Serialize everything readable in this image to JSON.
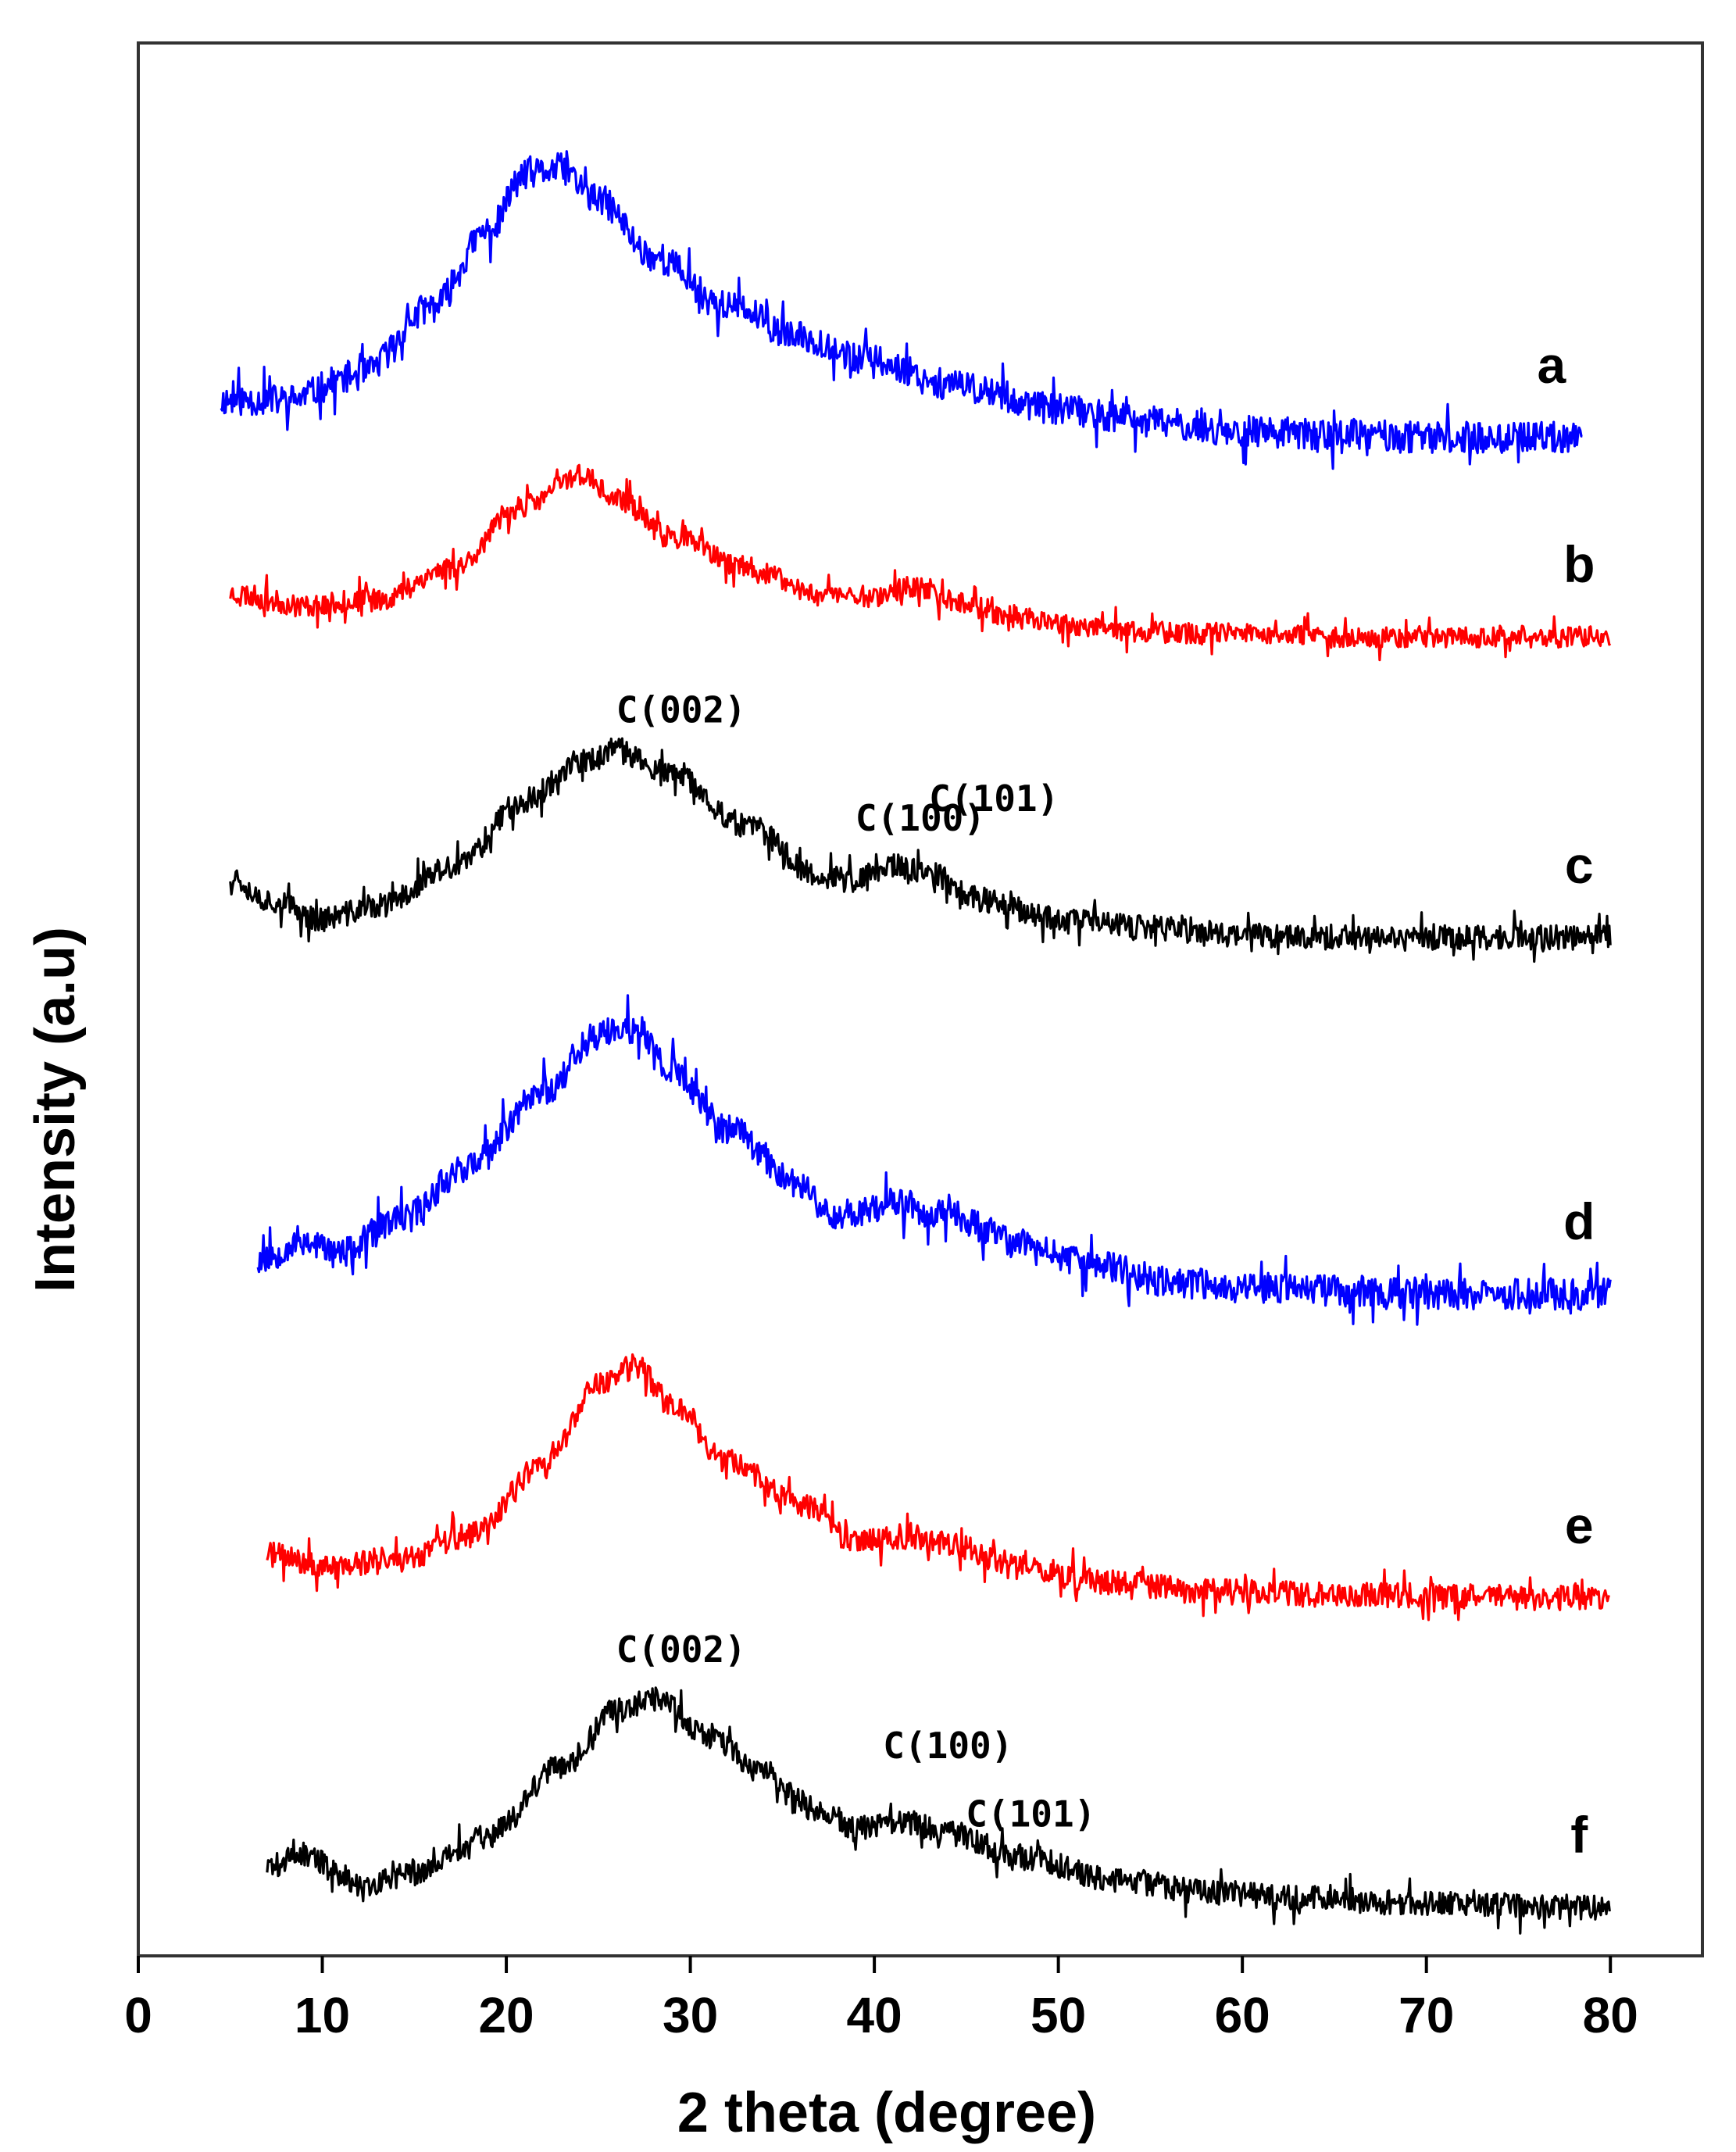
{
  "chart_data": {
    "type": "line",
    "xlabel": "2 theta (degree)",
    "ylabel": "Intensity (a.u)",
    "xlim": [
      0,
      85
    ],
    "xticks": [
      0,
      10,
      20,
      30,
      40,
      50,
      60,
      70,
      80
    ],
    "xtick_labels": [
      "0",
      "10",
      "20",
      "30",
      "40",
      "50",
      "60",
      "70",
      "80"
    ],
    "grid": false,
    "series": [
      {
        "name": "a",
        "label": "a",
        "color": "#0000ff",
        "x_start": 4.5,
        "x_end": 78.5,
        "noise": 0.05,
        "seed": 11,
        "points": [
          [
            4.5,
            0.12
          ],
          [
            8,
            0.12
          ],
          [
            12,
            0.2
          ],
          [
            16,
            0.42
          ],
          [
            19,
            0.66
          ],
          [
            21,
            0.84
          ],
          [
            23,
            0.86
          ],
          [
            25,
            0.76
          ],
          [
            28,
            0.58
          ],
          [
            32,
            0.42
          ],
          [
            36,
            0.32
          ],
          [
            40,
            0.24
          ],
          [
            45,
            0.16
          ],
          [
            50,
            0.09
          ],
          [
            55,
            0.05
          ],
          [
            60,
            0.02
          ],
          [
            65,
            0.01
          ],
          [
            70,
            0.0
          ],
          [
            78.5,
            0.0
          ]
        ]
      },
      {
        "name": "b",
        "label": "b",
        "color": "#ff0000",
        "x_start": 5.0,
        "x_end": 80,
        "noise": 0.035,
        "seed": 23,
        "points": [
          [
            5,
            0.14
          ],
          [
            9,
            0.1
          ],
          [
            13,
            0.12
          ],
          [
            17,
            0.22
          ],
          [
            21,
            0.42
          ],
          [
            24,
            0.52
          ],
          [
            26,
            0.44
          ],
          [
            29,
            0.32
          ],
          [
            33,
            0.22
          ],
          [
            37,
            0.14
          ],
          [
            40,
            0.13
          ],
          [
            42,
            0.16
          ],
          [
            44,
            0.12
          ],
          [
            48,
            0.06
          ],
          [
            53,
            0.02
          ],
          [
            58,
            0.01
          ],
          [
            65,
            0.0
          ],
          [
            80,
            0.0
          ]
        ]
      },
      {
        "name": "c",
        "label": "c",
        "color": "#000000",
        "x_start": 5.0,
        "x_end": 80,
        "noise": 0.04,
        "seed": 37,
        "points": [
          [
            5,
            0.2
          ],
          [
            7,
            0.12
          ],
          [
            10,
            0.06
          ],
          [
            13,
            0.1
          ],
          [
            17,
            0.22
          ],
          [
            21,
            0.44
          ],
          [
            24,
            0.56
          ],
          [
            26,
            0.6
          ],
          [
            29,
            0.52
          ],
          [
            33,
            0.36
          ],
          [
            37,
            0.2
          ],
          [
            39,
            0.18
          ],
          [
            41,
            0.23
          ],
          [
            43,
            0.2
          ],
          [
            46,
            0.12
          ],
          [
            50,
            0.06
          ],
          [
            55,
            0.03
          ],
          [
            60,
            0.01
          ],
          [
            68,
            0.0
          ],
          [
            80,
            0.0
          ]
        ]
      },
      {
        "name": "d",
        "label": "d",
        "color": "#0000ff",
        "x_start": 6.5,
        "x_end": 80,
        "noise": 0.05,
        "seed": 53,
        "points": [
          [
            6.5,
            0.12
          ],
          [
            9,
            0.18
          ],
          [
            11,
            0.14
          ],
          [
            14,
            0.24
          ],
          [
            18,
            0.42
          ],
          [
            22,
            0.66
          ],
          [
            25,
            0.84
          ],
          [
            27,
            0.86
          ],
          [
            29,
            0.72
          ],
          [
            32,
            0.54
          ],
          [
            36,
            0.36
          ],
          [
            38,
            0.26
          ],
          [
            41,
            0.3
          ],
          [
            44,
            0.26
          ],
          [
            48,
            0.17
          ],
          [
            52,
            0.1
          ],
          [
            56,
            0.05
          ],
          [
            60,
            0.03
          ],
          [
            66,
            0.02
          ],
          [
            72,
            0.01
          ],
          [
            80,
            0.01
          ]
        ]
      },
      {
        "name": "e",
        "label": "e",
        "color": "#ff0000",
        "x_start": 7.0,
        "x_end": 80,
        "noise": 0.04,
        "seed": 71,
        "points": [
          [
            7,
            0.14
          ],
          [
            10,
            0.1
          ],
          [
            14,
            0.12
          ],
          [
            18,
            0.2
          ],
          [
            22,
            0.42
          ],
          [
            25,
            0.68
          ],
          [
            27,
            0.74
          ],
          [
            29,
            0.62
          ],
          [
            32,
            0.44
          ],
          [
            36,
            0.3
          ],
          [
            39,
            0.18
          ],
          [
            42,
            0.2
          ],
          [
            44,
            0.17
          ],
          [
            48,
            0.1
          ],
          [
            53,
            0.05
          ],
          [
            58,
            0.02
          ],
          [
            65,
            0.01
          ],
          [
            80,
            0.0
          ]
        ]
      },
      {
        "name": "f",
        "label": "f",
        "color": "#000000",
        "x_start": 7.0,
        "x_end": 80,
        "noise": 0.04,
        "seed": 89,
        "points": [
          [
            7,
            0.14
          ],
          [
            9,
            0.18
          ],
          [
            11,
            0.12
          ],
          [
            12,
            0.08
          ],
          [
            15,
            0.12
          ],
          [
            19,
            0.24
          ],
          [
            23,
            0.46
          ],
          [
            26,
            0.64
          ],
          [
            28,
            0.68
          ],
          [
            31,
            0.56
          ],
          [
            34,
            0.44
          ],
          [
            37,
            0.32
          ],
          [
            39,
            0.26
          ],
          [
            42,
            0.28
          ],
          [
            44,
            0.25
          ],
          [
            48,
            0.17
          ],
          [
            53,
            0.1
          ],
          [
            58,
            0.06
          ],
          [
            63,
            0.04
          ],
          [
            70,
            0.02
          ],
          [
            80,
            0.01
          ]
        ]
      }
    ],
    "annotations": [
      {
        "text": "C(002)",
        "series": "c",
        "x": 29.5,
        "pos": "above"
      },
      {
        "text": "C(101)",
        "series": "c",
        "x": 46.5,
        "pos": "above"
      },
      {
        "text": "C(100)",
        "series": "c",
        "x": 42.5,
        "pos": "above"
      },
      {
        "text": "C(002)",
        "series": "f",
        "x": 29.5,
        "pos": "above"
      },
      {
        "text": "C(100)",
        "series": "f",
        "x": 44,
        "pos": "above"
      },
      {
        "text": "C(101)",
        "series": "f",
        "x": 48.5,
        "pos": "above"
      }
    ]
  }
}
